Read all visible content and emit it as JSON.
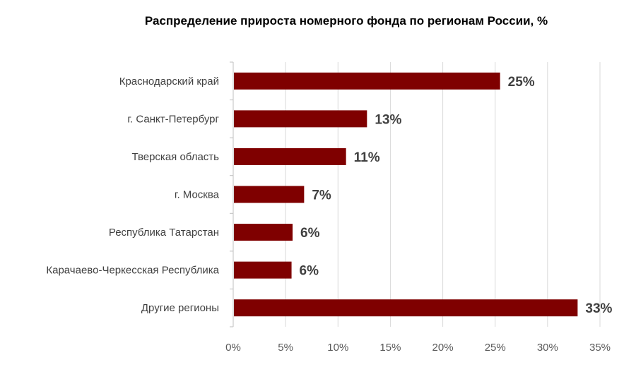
{
  "chart_data": {
    "type": "bar",
    "orientation": "horizontal",
    "title": "Распределение прироста номерного фонда по регионам России, %",
    "categories": [
      "Краснодарский край",
      "г. Санкт-Петербург",
      "Тверская область",
      "г. Москва",
      "Республика Татарстан",
      "Карачаево-Черкесская Республика",
      "Другие регионы"
    ],
    "values": [
      25.4,
      12.7,
      10.7,
      6.7,
      5.6,
      5.5,
      32.8
    ],
    "data_labels": [
      "25%",
      "13%",
      "11%",
      "7%",
      "6%",
      "6%",
      "33%"
    ],
    "xlim": [
      0,
      35
    ],
    "x_ticks": [
      0,
      5,
      10,
      15,
      20,
      25,
      30,
      35
    ],
    "x_tick_labels": [
      "0%",
      "5%",
      "10%",
      "15%",
      "20%",
      "25%",
      "30%",
      "35%"
    ],
    "xlabel": "",
    "ylabel": "",
    "grid": "vertical",
    "legend": "none",
    "bar_color": "#7f0000",
    "grid_color": "#d9d9d9"
  }
}
